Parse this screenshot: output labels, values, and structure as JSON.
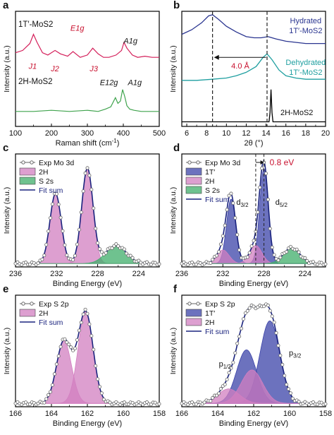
{
  "chart_data": [
    {
      "id": "a",
      "panel_label": "a",
      "type": "line",
      "xlabel": "Raman shift (cm",
      "xlabel_sup": "-1",
      "xlabel_end": ")",
      "ylabel": "Intensity (a.u.)",
      "xlim": [
        100,
        500
      ],
      "xticks": [
        "100",
        "200",
        "300",
        "400",
        "500"
      ],
      "series": [
        {
          "name": "1T′-MoS2",
          "color": "#d41f5a",
          "x": [
            100,
            120,
            140,
            150,
            160,
            175,
            190,
            210,
            225,
            245,
            260,
            280,
            300,
            315,
            330,
            345,
            360,
            380,
            395,
            402,
            410,
            425,
            440,
            460,
            480,
            500
          ],
          "y": [
            0.64,
            0.66,
            0.72,
            0.8,
            0.73,
            0.64,
            0.62,
            0.66,
            0.63,
            0.61,
            0.65,
            0.6,
            0.62,
            0.68,
            0.63,
            0.6,
            0.6,
            0.62,
            0.66,
            0.73,
            0.68,
            0.62,
            0.6,
            0.61,
            0.6,
            0.6
          ]
        },
        {
          "name": "2H-MoS2",
          "color": "#3fa34d",
          "x": [
            100,
            150,
            200,
            250,
            300,
            330,
            350,
            365,
            378,
            385,
            392,
            398,
            404,
            410,
            418,
            430,
            450,
            480,
            500
          ],
          "y": [
            0.13,
            0.13,
            0.14,
            0.13,
            0.14,
            0.13,
            0.15,
            0.17,
            0.25,
            0.2,
            0.22,
            0.32,
            0.26,
            0.18,
            0.15,
            0.14,
            0.13,
            0.13,
            0.13
          ]
        }
      ],
      "annotations": [
        "J1",
        "J2",
        "E1g",
        "J3",
        "A1g",
        "E12g",
        "A1g"
      ],
      "series_labels": [
        "1T′-MoS2",
        "2H-MoS2"
      ]
    },
    {
      "id": "b",
      "panel_label": "b",
      "type": "line",
      "xlabel": "2θ (°)",
      "ylabel": "Intensity (a.u.)",
      "xlim": [
        5.5,
        20
      ],
      "xticks": [
        "6",
        "8",
        "10",
        "12",
        "14",
        "16",
        "18",
        "20"
      ],
      "series": [
        {
          "name": "Hydrated 1T′-MoS2",
          "color": "#2a3590",
          "x": [
            5.5,
            6.5,
            7.5,
            8.2,
            8.6,
            9.2,
            10,
            11,
            12,
            12.8,
            13.5,
            14.2,
            15,
            16,
            17,
            18,
            19,
            20
          ],
          "y": [
            0.8,
            0.84,
            0.9,
            0.96,
            0.97,
            0.93,
            0.87,
            0.82,
            0.78,
            0.77,
            0.77,
            0.78,
            0.76,
            0.74,
            0.73,
            0.72,
            0.72,
            0.72
          ]
        },
        {
          "name": "Dehydrated 1T′-MoS2",
          "color": "#1f9fa0",
          "x": [
            5.5,
            7,
            8.6,
            10,
            11,
            12,
            13,
            13.7,
            14.1,
            14.6,
            15.3,
            16,
            17,
            18,
            19,
            20
          ],
          "y": [
            0.4,
            0.4,
            0.41,
            0.42,
            0.44,
            0.47,
            0.52,
            0.6,
            0.63,
            0.58,
            0.49,
            0.44,
            0.42,
            0.41,
            0.41,
            0.41
          ]
        },
        {
          "name": "2H-MoS2",
          "color": "#000000",
          "x": [
            5.5,
            10,
            14.3,
            14.4,
            14.5,
            14.6,
            14.7,
            20
          ],
          "y": [
            0.04,
            0.04,
            0.04,
            0.12,
            0.32,
            0.12,
            0.04,
            0.04
          ]
        }
      ],
      "annotations": [
        "4.0 Å"
      ],
      "series_labels": [
        "Hydrated",
        "1T′-MoS2",
        "Dehydrated",
        "1T′-MoS2",
        "2H-MoS2"
      ]
    },
    {
      "id": "c",
      "panel_label": "c",
      "type": "line",
      "xlabel": "Binding Energy (eV)",
      "ylabel": "Intensity (a.u.)",
      "xlim": [
        236,
        222
      ],
      "xticks": [
        "236",
        "232",
        "228",
        "224"
      ],
      "legend": [
        "Exp Mo 3d",
        "2H",
        "S 2s",
        "Fit sum"
      ],
      "peaks": [
        {
          "name": "2H",
          "color": "#d27fc0",
          "center": 232.1,
          "width": 0.55,
          "height": 0.62
        },
        {
          "name": "2H",
          "color": "#d27fc0",
          "center": 229.0,
          "width": 0.55,
          "height": 0.84
        },
        {
          "name": "S 2s",
          "color": "#3fae6a",
          "center": 226.2,
          "width": 1.0,
          "height": 0.16
        }
      ],
      "baseline": 0.03
    },
    {
      "id": "d",
      "panel_label": "d",
      "type": "line",
      "xlabel": "Binding Energy (eV)",
      "ylabel": "Intensity (a.u.)",
      "xlim": [
        236,
        222
      ],
      "xticks": [
        "236",
        "232",
        "228",
        "224"
      ],
      "legend": [
        "Exp Mo 3d",
        "1T′",
        "2H",
        "S 2s",
        "Fit sum"
      ],
      "peaks": [
        {
          "name": "1T′",
          "color": "#3b43a8",
          "center": 231.2,
          "width": 0.45,
          "height": 0.57
        },
        {
          "name": "1T′",
          "color": "#3b43a8",
          "center": 228.0,
          "width": 0.42,
          "height": 0.84
        },
        {
          "name": "2H",
          "color": "#d27fc0",
          "center": 232.0,
          "width": 0.6,
          "height": 0.12
        },
        {
          "name": "2H",
          "color": "#d27fc0",
          "center": 228.8,
          "width": 0.6,
          "height": 0.16
        },
        {
          "name": "S 2s",
          "color": "#3fae6a",
          "center": 225.3,
          "width": 0.8,
          "height": 0.14
        }
      ],
      "baseline": 0.03,
      "annotations": [
        "0.8 eV",
        "d3/2",
        "d5/2"
      ]
    },
    {
      "id": "e",
      "panel_label": "e",
      "type": "line",
      "xlabel": "Binding Energy (eV)",
      "ylabel": "Intensity (a.u.)",
      "xlim": [
        166,
        158
      ],
      "xticks": [
        "166",
        "164",
        "162",
        "160",
        "158"
      ],
      "legend": [
        "Exp S 2p",
        "2H",
        "Fit sum"
      ],
      "peaks": [
        {
          "name": "2H",
          "color": "#d27fc0",
          "center": 163.3,
          "width": 0.42,
          "height": 0.56
        },
        {
          "name": "2H",
          "color": "#d27fc0",
          "center": 162.1,
          "width": 0.42,
          "height": 0.82
        }
      ],
      "baseline": 0.03
    },
    {
      "id": "f",
      "panel_label": "f",
      "type": "line",
      "xlabel": "Binding Energy (eV)",
      "ylabel": "Intensity (a.u.)",
      "xlim": [
        166,
        158
      ],
      "xticks": [
        "166",
        "164",
        "162",
        "160",
        "158"
      ],
      "legend": [
        "Exp S 2p",
        "1T′",
        "2H",
        "Fit sum"
      ],
      "peaks": [
        {
          "name": "1T′",
          "color": "#3b43a8",
          "center": 162.4,
          "width": 0.55,
          "height": 0.48
        },
        {
          "name": "1T′",
          "color": "#3b43a8",
          "center": 161.1,
          "width": 0.55,
          "height": 0.74
        },
        {
          "name": "2H",
          "color": "#d27fc0",
          "center": 163.4,
          "width": 0.6,
          "height": 0.13
        },
        {
          "name": "2H",
          "color": "#d27fc0",
          "center": 162.1,
          "width": 0.6,
          "height": 0.3
        }
      ],
      "baseline": 0.03,
      "annotations": [
        "p1/2",
        "p3/2"
      ]
    }
  ]
}
